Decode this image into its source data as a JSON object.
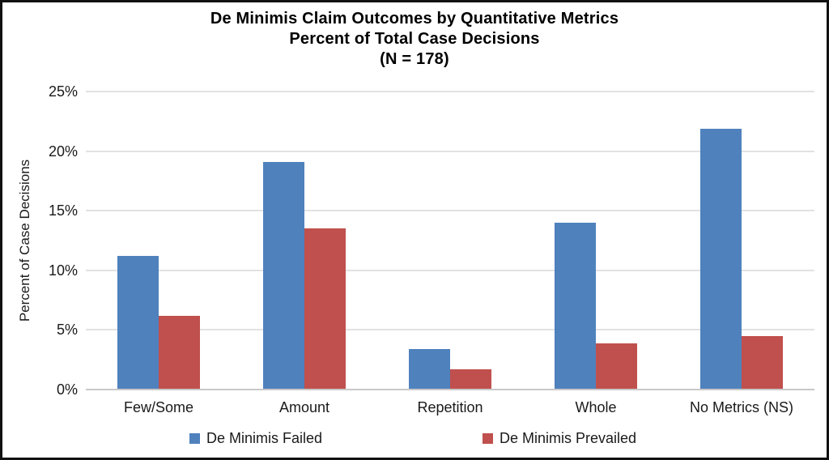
{
  "chart_data": {
    "type": "bar",
    "title": "De Minimis Claim Outcomes by Quantitative Metrics",
    "subtitle": "Percent of Total Case Decisions",
    "n_label": "(N = 178)",
    "categories": [
      "Few/Some",
      "Amount",
      "Repetition",
      "Whole",
      "No Metrics (NS)"
    ],
    "series": [
      {
        "name": "De Minimis Failed",
        "color": "#4F81BD",
        "values": [
          11.2,
          19.1,
          3.4,
          14.0,
          21.9
        ]
      },
      {
        "name": "De Minimis Prevailed",
        "color": "#C0504D",
        "values": [
          6.2,
          13.5,
          1.7,
          3.9,
          4.5
        ]
      }
    ],
    "xlabel": "",
    "ylabel": "Percent of Case Decisions",
    "ylim": [
      0,
      25
    ],
    "ytick_step": 5,
    "ytick_labels": [
      "0%",
      "5%",
      "10%",
      "15%",
      "20%",
      "25%"
    ],
    "ytick_format": "percent",
    "grid": true,
    "legend_position": "bottom"
  }
}
